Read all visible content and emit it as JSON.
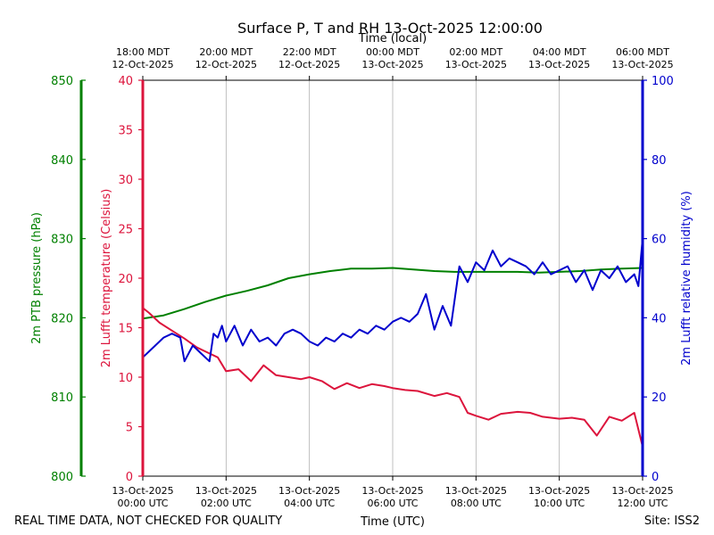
{
  "chart_data": {
    "type": "line",
    "title": "Surface P, T and RH 13-Oct-2025 12:00:00",
    "top_axis_label": "Time (local)",
    "xlabel": "Time (UTC)",
    "footer_left": "REAL TIME DATA, NOT CHECKED FOR QUALITY",
    "footer_right": "Site: ISS2",
    "x_range_hours": [
      0,
      12
    ],
    "bottom_ticks": [
      {
        "hour": 0,
        "line1": "13-Oct-2025",
        "line2": "00:00 UTC"
      },
      {
        "hour": 2,
        "line1": "13-Oct-2025",
        "line2": "02:00 UTC"
      },
      {
        "hour": 4,
        "line1": "13-Oct-2025",
        "line2": "04:00 UTC"
      },
      {
        "hour": 6,
        "line1": "13-Oct-2025",
        "line2": "06:00 UTC"
      },
      {
        "hour": 8,
        "line1": "13-Oct-2025",
        "line2": "08:00 UTC"
      },
      {
        "hour": 10,
        "line1": "13-Oct-2025",
        "line2": "10:00 UTC"
      },
      {
        "hour": 12,
        "line1": "13-Oct-2025",
        "line2": "12:00 UTC"
      }
    ],
    "top_ticks": [
      {
        "hour": 0,
        "line1": "18:00 MDT",
        "line2": "12-Oct-2025"
      },
      {
        "hour": 2,
        "line1": "20:00 MDT",
        "line2": "12-Oct-2025"
      },
      {
        "hour": 4,
        "line1": "22:00 MDT",
        "line2": "12-Oct-2025"
      },
      {
        "hour": 6,
        "line1": "00:00 MDT",
        "line2": "13-Oct-2025"
      },
      {
        "hour": 8,
        "line1": "02:00 MDT",
        "line2": "13-Oct-2025"
      },
      {
        "hour": 10,
        "line1": "04:00 MDT",
        "line2": "13-Oct-2025"
      },
      {
        "hour": 12,
        "line1": "06:00 MDT",
        "line2": "13-Oct-2025"
      }
    ],
    "axes": {
      "pressure": {
        "label": "2m PTB pressure (hPa)",
        "range": [
          800,
          850
        ],
        "ticks": [
          800,
          810,
          820,
          830,
          840,
          850
        ],
        "color": "#008000"
      },
      "temperature": {
        "label": "2m Lufft temperature (Celsius)",
        "range": [
          0,
          40
        ],
        "ticks": [
          0,
          5,
          10,
          15,
          20,
          25,
          30,
          35,
          40
        ],
        "color": "#dc143c"
      },
      "humidity": {
        "label": "2m Lufft relative humidity (%)",
        "range": [
          0,
          100
        ],
        "ticks": [
          0,
          20,
          40,
          60,
          80,
          100
        ],
        "color": "#0000cd"
      }
    },
    "series": [
      {
        "name": "2m PTB pressure",
        "axis": "pressure",
        "color": "#008000",
        "x": [
          0,
          0.5,
          1,
          1.5,
          2,
          2.5,
          3,
          3.5,
          4,
          4.5,
          5,
          5.5,
          6,
          6.5,
          7,
          7.5,
          8,
          8.5,
          9,
          9.5,
          10,
          10.5,
          11,
          11.5,
          12
        ],
        "y": [
          819.9,
          820.3,
          821.1,
          822.0,
          822.8,
          823.4,
          824.1,
          825.0,
          825.5,
          825.9,
          826.2,
          826.2,
          826.3,
          826.1,
          825.9,
          825.8,
          825.8,
          825.8,
          825.8,
          825.7,
          825.8,
          825.9,
          826.1,
          826.2,
          826.3
        ]
      },
      {
        "name": "2m Lufft temperature",
        "axis": "temperature",
        "color": "#dc143c",
        "x": [
          0,
          0.15,
          0.4,
          0.7,
          1.0,
          1.3,
          1.6,
          1.8,
          2.0,
          2.3,
          2.6,
          2.9,
          3.2,
          3.5,
          3.8,
          4.0,
          4.3,
          4.6,
          4.9,
          5.2,
          5.5,
          5.8,
          6.0,
          6.3,
          6.6,
          7.0,
          7.3,
          7.6,
          7.8,
          8.0,
          8.3,
          8.6,
          9.0,
          9.3,
          9.6,
          10.0,
          10.3,
          10.6,
          10.9,
          11.2,
          11.5,
          11.8,
          12.0
        ],
        "y": [
          17.0,
          16.5,
          15.5,
          14.7,
          13.9,
          13.0,
          12.4,
          12.0,
          10.6,
          10.8,
          9.6,
          11.2,
          10.2,
          10.0,
          9.8,
          10.0,
          9.6,
          8.8,
          9.4,
          8.9,
          9.3,
          9.1,
          8.9,
          8.7,
          8.6,
          8.1,
          8.4,
          8.0,
          6.4,
          6.1,
          5.7,
          6.3,
          6.5,
          6.4,
          6.0,
          5.8,
          5.9,
          5.7,
          4.1,
          6.0,
          5.6,
          6.4,
          3.0
        ]
      },
      {
        "name": "2m Lufft relative humidity",
        "axis": "humidity",
        "color": "#0000cd",
        "x": [
          0,
          0.3,
          0.5,
          0.7,
          0.9,
          1.0,
          1.2,
          1.4,
          1.6,
          1.7,
          1.8,
          1.9,
          2.0,
          2.1,
          2.2,
          2.4,
          2.6,
          2.8,
          3.0,
          3.2,
          3.4,
          3.6,
          3.8,
          4.0,
          4.2,
          4.4,
          4.6,
          4.8,
          5.0,
          5.2,
          5.4,
          5.6,
          5.8,
          6.0,
          6.2,
          6.4,
          6.6,
          6.8,
          7.0,
          7.2,
          7.4,
          7.6,
          7.8,
          8.0,
          8.2,
          8.4,
          8.6,
          8.8,
          9.0,
          9.2,
          9.4,
          9.6,
          9.8,
          10.0,
          10.2,
          10.4,
          10.6,
          10.8,
          11.0,
          11.2,
          11.4,
          11.6,
          11.8,
          11.9,
          12.0
        ],
        "y": [
          30,
          33,
          35,
          36,
          35,
          29,
          33,
          31,
          29,
          36,
          35,
          38,
          34,
          36,
          38,
          33,
          37,
          34,
          35,
          33,
          36,
          37,
          36,
          34,
          33,
          35,
          34,
          36,
          35,
          37,
          36,
          38,
          37,
          39,
          40,
          39,
          41,
          46,
          37,
          43,
          38,
          53,
          49,
          54,
          52,
          57,
          53,
          55,
          54,
          53,
          51,
          54,
          51,
          52,
          53,
          49,
          52,
          47,
          52,
          50,
          53,
          49,
          51,
          48,
          60
        ]
      }
    ]
  }
}
